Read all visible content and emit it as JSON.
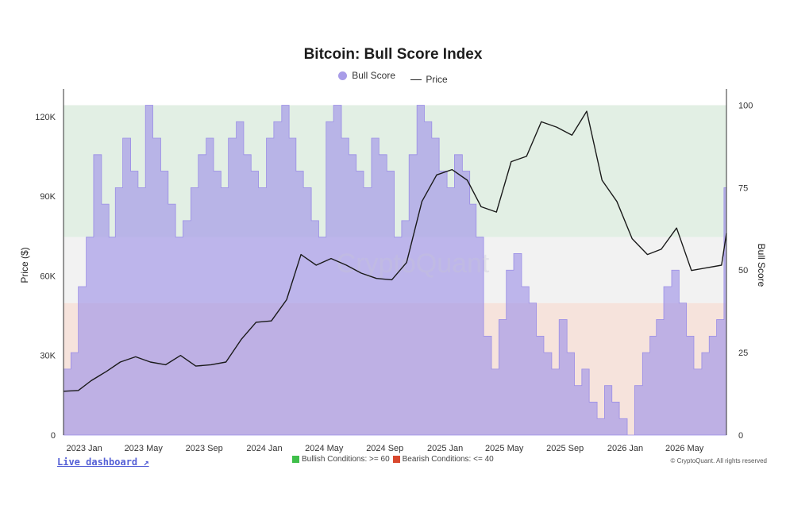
{
  "chart_data": {
    "type": "area",
    "title": "Bitcoin: Bull Score Index",
    "legend": [
      "Bull Score",
      "Price"
    ],
    "legend_position": "top-center",
    "ylabel_left": "Price ($)",
    "ylabel_right": "Bull Score",
    "x_ticks": [
      "2023 Jan",
      "2023 May",
      "2023 Sep",
      "2024 Jan",
      "2024 May",
      "2024 Sep",
      "2025 Jan",
      "2025 May",
      "2025 Sep",
      "2026 Jan",
      "2026 May"
    ],
    "y_left_ticks": [
      "0",
      "30K",
      "60K",
      "90K",
      "120K"
    ],
    "y_left_ticks_values": [
      0,
      30000,
      60000,
      90000,
      120000
    ],
    "y_right_ticks": [
      "0",
      "25",
      "50",
      "75",
      "100"
    ],
    "y_right_ticks_values": [
      0,
      25,
      50,
      75,
      100
    ],
    "ylim_left": [
      0,
      128000
    ],
    "ylim_right": [
      0,
      103
    ],
    "xlim": [
      "2022-11-20",
      "2026-07-25"
    ],
    "zones": [
      {
        "name": "Bullish Conditions",
        "from": 60,
        "to": 100,
        "color": "#e2efe4"
      },
      {
        "name": "Neutral",
        "from": 40,
        "to": 60,
        "color": "#f2f2f2"
      },
      {
        "name": "Bearish Conditions",
        "from": 0,
        "to": 40,
        "color": "#f6e3dc"
      }
    ],
    "series": [
      {
        "name": "Bull Score",
        "kind": "step-area",
        "color": "#a89ce8",
        "x": [
          "2022-11-20",
          "2022-12-05",
          "2022-12-20",
          "2023-01-05",
          "2023-01-20",
          "2023-02-05",
          "2023-02-20",
          "2023-03-05",
          "2023-03-20",
          "2023-04-05",
          "2023-04-20",
          "2023-05-05",
          "2023-05-20",
          "2023-06-05",
          "2023-06-20",
          "2023-07-05",
          "2023-07-20",
          "2023-08-05",
          "2023-08-20",
          "2023-09-05",
          "2023-09-20",
          "2023-10-05",
          "2023-10-20",
          "2023-11-05",
          "2023-11-20",
          "2023-12-05",
          "2023-12-20",
          "2024-01-05",
          "2024-01-20",
          "2024-02-05",
          "2024-02-20",
          "2024-03-05",
          "2024-03-20",
          "2024-04-05",
          "2024-04-20",
          "2024-05-05",
          "2024-05-20",
          "2024-06-05",
          "2024-06-20",
          "2024-07-05",
          "2024-07-20",
          "2024-08-05",
          "2024-08-20",
          "2024-09-05",
          "2024-09-20",
          "2024-10-05",
          "2024-10-20",
          "2024-11-05",
          "2024-11-20",
          "2024-12-05",
          "2024-12-20",
          "2025-01-05",
          "2025-01-20",
          "2025-02-05",
          "2025-02-20",
          "2025-03-05",
          "2025-03-20",
          "2025-04-05",
          "2025-04-20",
          "2025-05-05",
          "2025-05-20",
          "2025-06-05",
          "2025-06-20",
          "2025-07-05",
          "2025-07-20",
          "2025-08-05",
          "2025-08-20",
          "2025-09-05",
          "2025-09-20",
          "2025-10-05",
          "2025-10-20",
          "2025-11-05",
          "2025-11-20",
          "2025-12-05",
          "2025-12-20",
          "2026-01-05",
          "2026-01-20",
          "2026-02-05",
          "2026-02-20",
          "2026-03-05",
          "2026-03-20",
          "2026-04-05",
          "2026-04-20",
          "2026-05-05",
          "2026-05-20",
          "2026-06-05",
          "2026-06-20",
          "2026-07-05",
          "2026-07-20"
        ],
        "values": [
          20,
          25,
          45,
          60,
          85,
          70,
          60,
          75,
          90,
          80,
          75,
          100,
          90,
          80,
          70,
          60,
          65,
          75,
          85,
          90,
          80,
          75,
          90,
          95,
          85,
          80,
          75,
          90,
          95,
          100,
          90,
          80,
          75,
          65,
          60,
          95,
          100,
          90,
          85,
          80,
          75,
          90,
          85,
          80,
          60,
          65,
          85,
          100,
          95,
          90,
          80,
          75,
          85,
          80,
          70,
          60,
          30,
          20,
          35,
          50,
          55,
          45,
          40,
          30,
          25,
          20,
          35,
          25,
          15,
          20,
          10,
          5,
          15,
          10,
          5,
          0,
          15,
          25,
          30,
          35,
          45,
          50,
          40,
          30,
          20,
          25,
          30,
          35,
          75
        ]
      },
      {
        "name": "Price",
        "kind": "line",
        "color": "#1a1a1a",
        "x": [
          "2022-11-20",
          "2022-12-20",
          "2023-01-15",
          "2023-02-15",
          "2023-03-15",
          "2023-04-15",
          "2023-05-15",
          "2023-06-15",
          "2023-07-15",
          "2023-08-15",
          "2023-09-15",
          "2023-10-15",
          "2023-11-15",
          "2023-12-15",
          "2024-01-15",
          "2024-02-15",
          "2024-03-15",
          "2024-04-15",
          "2024-05-15",
          "2024-06-15",
          "2024-07-15",
          "2024-08-15",
          "2024-09-15",
          "2024-10-15",
          "2024-11-15",
          "2024-12-15",
          "2025-01-15",
          "2025-02-15",
          "2025-03-15",
          "2025-04-15",
          "2025-05-15",
          "2025-06-15",
          "2025-07-15",
          "2025-08-15",
          "2025-09-15",
          "2025-10-15",
          "2025-11-15",
          "2025-12-15",
          "2026-01-15",
          "2026-02-15",
          "2026-03-15",
          "2026-04-15",
          "2026-05-15",
          "2026-06-15",
          "2026-07-15",
          "2026-07-25"
        ],
        "values": [
          16500,
          16800,
          20500,
          24000,
          27500,
          29500,
          27500,
          26500,
          30000,
          26000,
          26500,
          27500,
          36000,
          42500,
          43000,
          51000,
          68000,
          64000,
          66500,
          64000,
          61000,
          59000,
          58500,
          65000,
          88000,
          98000,
          100000,
          96000,
          86000,
          84000,
          103000,
          105000,
          118000,
          116000,
          113000,
          122000,
          96000,
          88000,
          74000,
          68000,
          70000,
          78000,
          62000,
          63000,
          64000,
          76000
        ]
      }
    ]
  },
  "watermark": "CryptoQuant",
  "footer": {
    "live_dashboard": "Live dashboard ↗",
    "bullish_label": "Bullish Conditions: >= 60",
    "bearish_label": "Bearish Conditions: <= 40",
    "bullish_color": "#3fbf4a",
    "bearish_color": "#d9482e",
    "copyright": "© CryptoQuant. All rights reserved"
  }
}
